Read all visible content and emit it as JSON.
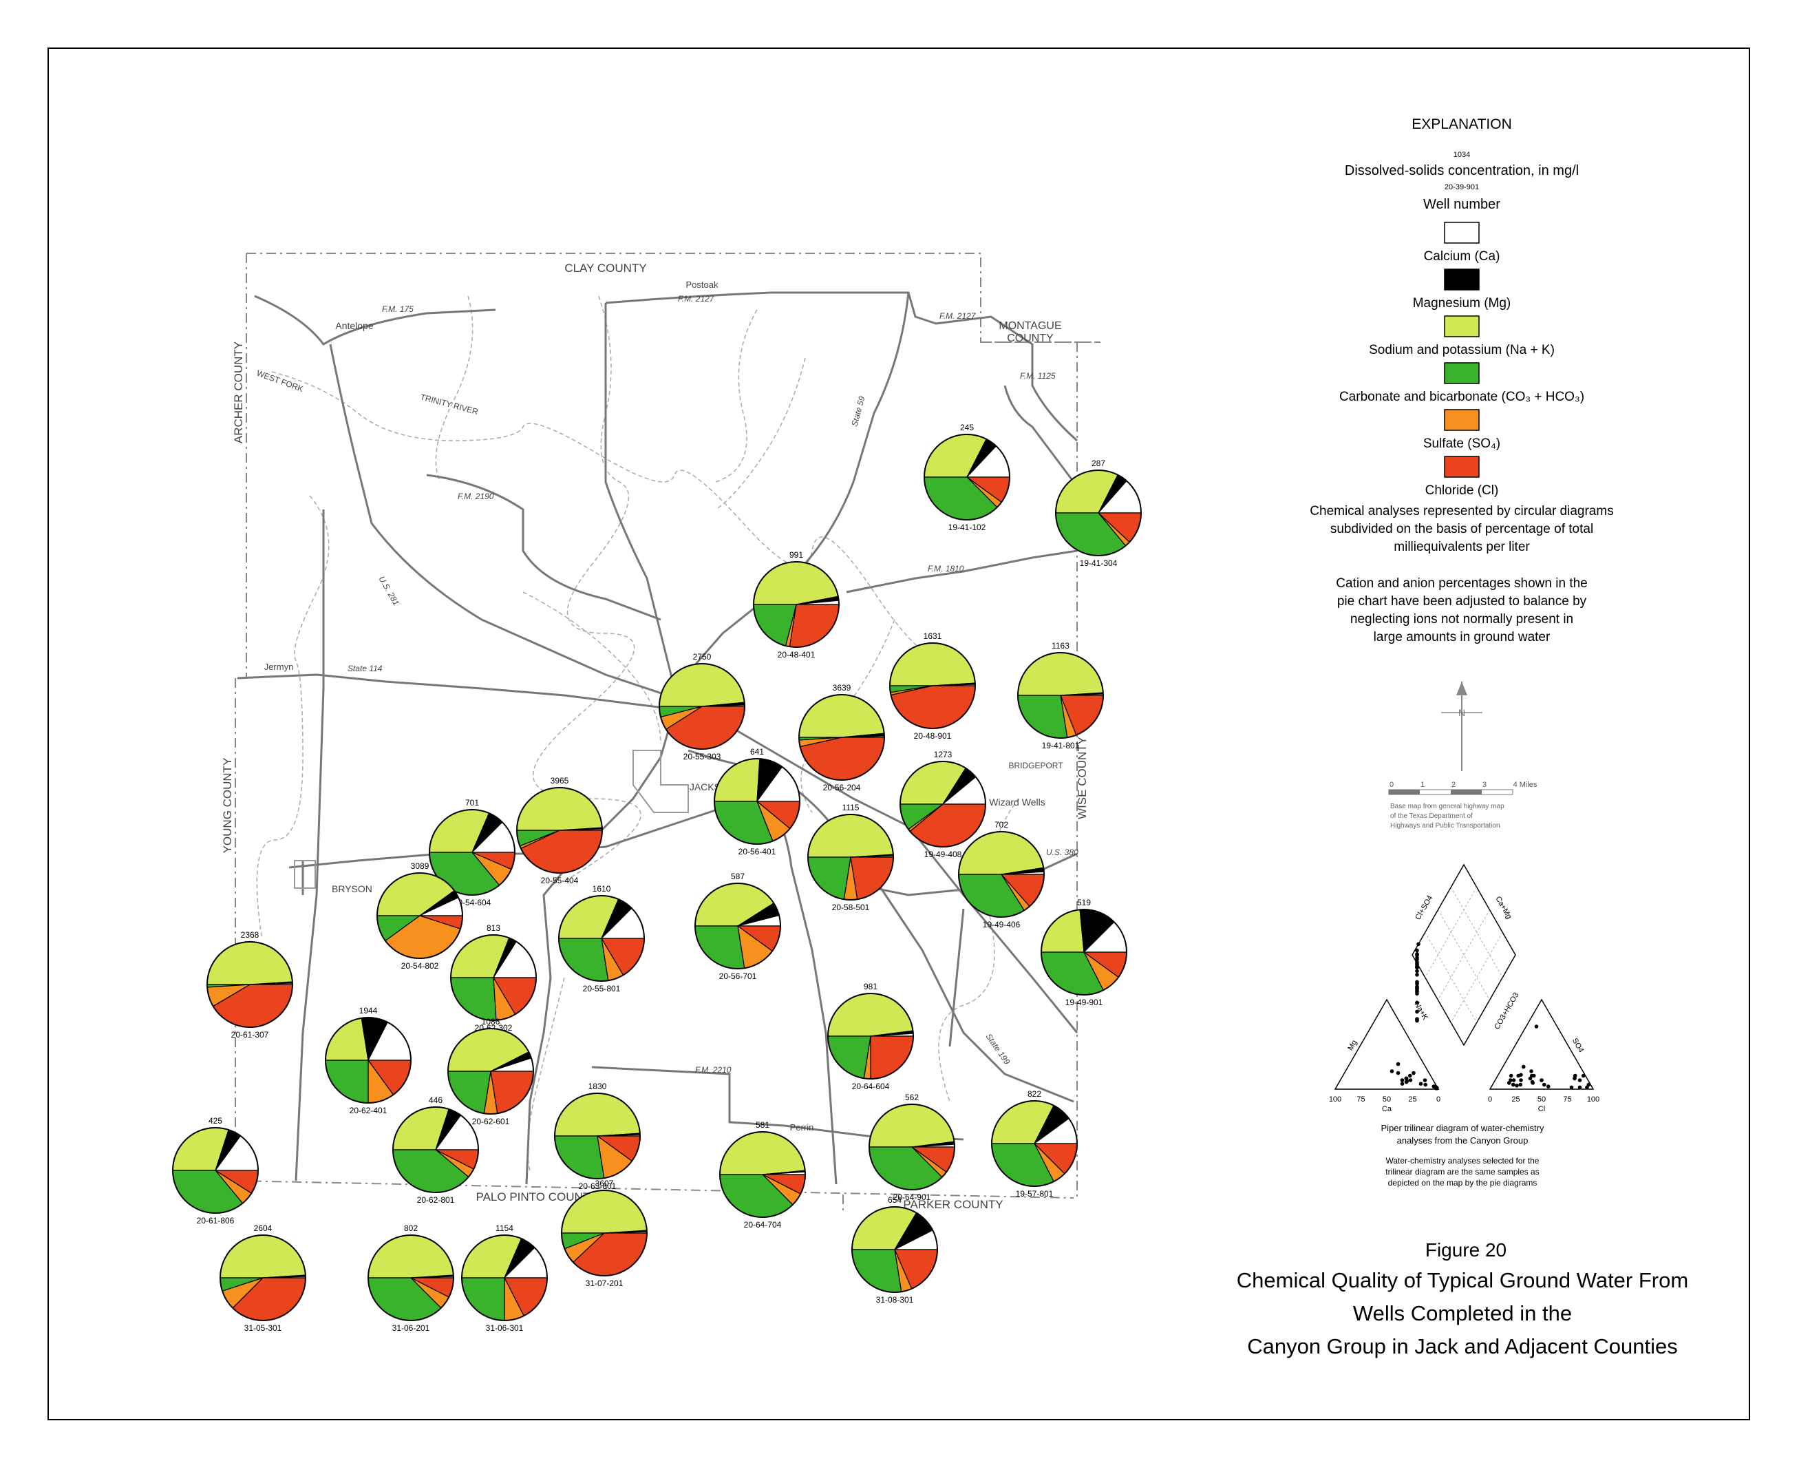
{
  "colors": {
    "calcium": "#ffffff",
    "magnesium": "#000000",
    "sodium_potassium": "#cfe854",
    "carbonate_bicarbonate": "#39b32b",
    "sulfate": "#f7901e",
    "chloride": "#e9441d"
  },
  "explanation": {
    "heading": "EXPLANATION",
    "sample_value": "1034",
    "dissolved_label": "Dissolved-solids concentration, in mg/l",
    "sample_well": "20-39-901",
    "well_label": "Well number",
    "legend": [
      {
        "key": "calcium",
        "label": "Calcium (Ca)"
      },
      {
        "key": "magnesium",
        "label": "Magnesium (Mg)"
      },
      {
        "key": "sodium_potassium",
        "label": "Sodium and potassium (Na + K)"
      },
      {
        "key": "carbonate_bicarbonate",
        "label": "Carbonate and bicarbonate (CO₃ + HCO₃)"
      },
      {
        "key": "sulfate",
        "label": "Sulfate (SO₄)"
      },
      {
        "key": "chloride",
        "label": "Chloride (Cl)"
      }
    ],
    "note1_lines": [
      "Chemical analyses represented by circular diagrams",
      "subdivided on the basis of percentage of total",
      "milliequivalents per liter"
    ],
    "note2_lines": [
      "Cation and anion percentages shown in the",
      "pie chart have been adjusted to balance by",
      "neglecting ions not normally present in",
      "large amounts in ground water"
    ]
  },
  "north_label": "N",
  "scale": {
    "ticks": [
      "0",
      "1",
      "2",
      "3",
      "4 Miles"
    ],
    "credit_lines": [
      "Base map from general highway map",
      "of the Texas Department of",
      "Highways and Public Transportation"
    ]
  },
  "piper": {
    "caption_lines": [
      "Piper trilinear diagram of water-chemistry",
      "analyses from the Canyon Group"
    ],
    "note_lines": [
      "Water-chemistry analyses selected for the",
      "trilinear diagram are the same samples as",
      "depicted on the map by the pie diagrams"
    ],
    "axis_ticks": [
      "100",
      "75",
      "50",
      "25",
      "0"
    ],
    "left_corner": "Ca",
    "right_corner": "Cl",
    "left_side": "Mg",
    "right_side": "SO4",
    "diamond_left": "Cl+SO4",
    "diamond_right": "Ca+Mg",
    "diamond_mid_left": "Na+K",
    "diamond_mid_right": "CO3+HCO3"
  },
  "figure": {
    "number": "Figure 20",
    "title_lines": [
      "Chemical Quality of Typical Ground Water From",
      "Wells Completed in the",
      "Canyon Group in Jack and Adjacent Counties"
    ]
  },
  "map_labels": {
    "clay_county": "CLAY COUNTY",
    "archer_county": "ARCHER COUNTY",
    "montague_county_1": "MONTAGUE",
    "montague_county_2": "COUNTY",
    "young_county": "YOUNG COUNTY",
    "wise_county": "WISE COUNTY",
    "palo_pinto_county": "PALO PINTO COUNTY",
    "parker_county": "PARKER COUNTY",
    "jacksboro": "JACKSBORO",
    "bryson": "BRYSON",
    "bridgeport": "BRIDGEPORT",
    "wizard_wells": "Wizard Wells",
    "antelope": "Antelope",
    "postoak": "Postoak",
    "jermyn": "Jermyn",
    "perrin": "Perrin",
    "fm175": "F.M. 175",
    "fm2127": "F.M. 2127",
    "fm1125": "F.M. 1125",
    "fm2190": "F.M. 2190",
    "fm1810": "F.M. 1810",
    "fm2210": "F.M. 2210",
    "us281": "U.S. 281",
    "us380": "U.S. 380",
    "state59": "State 59",
    "state114": "State 114",
    "state199": "State 199",
    "west_fork": "WEST FORK",
    "trinity_river": "TRINITY RIVER"
  },
  "wells": [
    {
      "id": "19-41-102",
      "tds": "245",
      "ca": 26,
      "mg": 9,
      "na": 65,
      "co3": 75,
      "so4": 5,
      "cl": 20
    },
    {
      "id": "19-41-304",
      "tds": "287",
      "ca": 27,
      "mg": 8,
      "na": 65,
      "co3": 72,
      "so4": 4,
      "cl": 24
    },
    {
      "id": "20-48-401",
      "tds": "991",
      "ca": 3,
      "mg": 3,
      "na": 94,
      "co3": 42,
      "so4": 3,
      "cl": 55
    },
    {
      "id": "20-48-901",
      "tds": "1631",
      "ca": 1,
      "mg": 1,
      "na": 98,
      "co3": 5,
      "so4": 2,
      "cl": 93
    },
    {
      "id": "19-41-801",
      "tds": "1163",
      "ca": 1,
      "mg": 1,
      "na": 98,
      "co3": 55,
      "so4": 7,
      "cl": 38
    },
    {
      "id": "20-55-303",
      "tds": "2750",
      "ca": 1,
      "mg": 2,
      "na": 97,
      "co3": 8,
      "so4": 10,
      "cl": 82
    },
    {
      "id": "20-56-204",
      "tds": "3639",
      "ca": 1,
      "mg": 2,
      "na": 97,
      "co3": 2,
      "so4": 5,
      "cl": 93
    },
    {
      "id": "20-56-401",
      "tds": "641",
      "ca": 30,
      "mg": 18,
      "na": 52,
      "co3": 62,
      "so4": 16,
      "cl": 22
    },
    {
      "id": "19-49-408",
      "tds": "1273",
      "ca": 22,
      "mg": 10,
      "na": 68,
      "co3": 20,
      "so4": 2,
      "cl": 78
    },
    {
      "id": "20-55-404",
      "tds": "3965",
      "ca": 1,
      "mg": 1,
      "na": 98,
      "co3": 12,
      "so4": 2,
      "cl": 86
    },
    {
      "id": "20-54-604",
      "tds": "701",
      "ca": 25,
      "mg": 12,
      "na": 63,
      "co3": 72,
      "so4": 15,
      "cl": 13
    },
    {
      "id": "20-58-501",
      "tds": "1115",
      "ca": 1,
      "mg": 1,
      "na": 98,
      "co3": 45,
      "so4": 10,
      "cl": 45
    },
    {
      "id": "19-49-406",
      "tds": "702",
      "ca": 2,
      "mg": 3,
      "na": 95,
      "co3": 68,
      "so4": 5,
      "cl": 27
    },
    {
      "id": "20-54-802",
      "tds": "3089",
      "ca": 14,
      "mg": 6,
      "na": 80,
      "co3": 20,
      "so4": 70,
      "cl": 10
    },
    {
      "id": "20-55-801",
      "tds": "1610",
      "ca": 25,
      "mg": 12,
      "na": 63,
      "co3": 55,
      "so4": 12,
      "cl": 33
    },
    {
      "id": "20-56-701",
      "tds": "587",
      "ca": 8,
      "mg": 10,
      "na": 82,
      "co3": 55,
      "so4": 25,
      "cl": 20
    },
    {
      "id": "19-49-901",
      "tds": "519",
      "ca": 25,
      "mg": 28,
      "na": 47,
      "co3": 65,
      "so4": 15,
      "cl": 20
    },
    {
      "id": "20-61-307",
      "tds": "2368",
      "ca": 1,
      "mg": 1,
      "na": 98,
      "co3": 2,
      "so4": 15,
      "cl": 83
    },
    {
      "id": "20-62-302",
      "tds": "813",
      "ca": 32,
      "mg": 6,
      "na": 62,
      "co3": 52,
      "so4": 15,
      "cl": 33
    },
    {
      "id": "20-64-604",
      "tds": "981",
      "ca": 2,
      "mg": 2,
      "na": 96,
      "co3": 45,
      "so4": 5,
      "cl": 50
    },
    {
      "id": "20-62-401",
      "tds": "1944",
      "ca": 35,
      "mg": 20,
      "na": 45,
      "co3": 50,
      "so4": 20,
      "cl": 30
    },
    {
      "id": "20-62-601",
      "tds": "1086",
      "ca": 10,
      "mg": 5,
      "na": 85,
      "co3": 45,
      "so4": 10,
      "cl": 45
    },
    {
      "id": "20-62-801",
      "tds": "446",
      "ca": 30,
      "mg": 10,
      "na": 60,
      "co3": 78,
      "so4": 7,
      "cl": 15
    },
    {
      "id": "20-61-806",
      "tds": "425",
      "ca": 30,
      "mg": 10,
      "na": 60,
      "co3": 72,
      "so4": 10,
      "cl": 18
    },
    {
      "id": "20-63-801",
      "tds": "1830",
      "ca": 1,
      "mg": 1,
      "na": 98,
      "co3": 55,
      "so4": 25,
      "cl": 20
    },
    {
      "id": "20-64-704",
      "tds": "581",
      "ca": 2,
      "mg": 1,
      "na": 97,
      "co3": 75,
      "so4": 10,
      "cl": 15
    },
    {
      "id": "20-64-901",
      "tds": "562",
      "ca": 2,
      "mg": 2,
      "na": 96,
      "co3": 75,
      "so4": 5,
      "cl": 20
    },
    {
      "id": "19-57-801",
      "tds": "822",
      "ca": 20,
      "mg": 15,
      "na": 65,
      "co3": 65,
      "so4": 10,
      "cl": 25
    },
    {
      "id": "31-07-201",
      "tds": "3607",
      "ca": 1,
      "mg": 1,
      "na": 98,
      "co3": 12,
      "so4": 12,
      "cl": 76
    },
    {
      "id": "31-08-301",
      "tds": "654",
      "ca": 15,
      "mg": 18,
      "na": 67,
      "co3": 55,
      "so4": 8,
      "cl": 37
    },
    {
      "id": "31-05-301",
      "tds": "2604",
      "ca": 1,
      "mg": 1,
      "na": 98,
      "co3": 10,
      "so4": 15,
      "cl": 75
    },
    {
      "id": "31-06-201",
      "tds": "802",
      "ca": 1,
      "mg": 1,
      "na": 98,
      "co3": 75,
      "so4": 10,
      "cl": 15
    },
    {
      "id": "31-06-301",
      "tds": "1154",
      "ca": 25,
      "mg": 12,
      "na": 63,
      "co3": 50,
      "so4": 15,
      "cl": 35
    }
  ]
}
